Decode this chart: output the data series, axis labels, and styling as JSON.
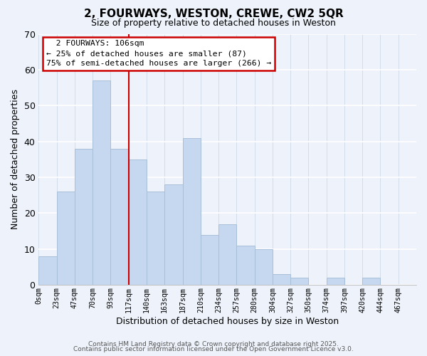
{
  "title": "2, FOURWAYS, WESTON, CREWE, CW2 5QR",
  "subtitle": "Size of property relative to detached houses in Weston",
  "xlabel": "Distribution of detached houses by size in Weston",
  "ylabel": "Number of detached properties",
  "bar_labels": [
    "0sqm",
    "23sqm",
    "47sqm",
    "70sqm",
    "93sqm",
    "117sqm",
    "140sqm",
    "163sqm",
    "187sqm",
    "210sqm",
    "234sqm",
    "257sqm",
    "280sqm",
    "304sqm",
    "327sqm",
    "350sqm",
    "374sqm",
    "397sqm",
    "420sqm",
    "444sqm",
    "467sqm"
  ],
  "bar_values": [
    8,
    26,
    38,
    57,
    38,
    35,
    26,
    28,
    41,
    14,
    17,
    11,
    10,
    3,
    2,
    0,
    2,
    0,
    2,
    0,
    0
  ],
  "bar_color": "#c5d8f0",
  "bar_edge_color": "#a8bfd8",
  "vline_x": 5,
  "vline_color": "#cc0000",
  "ylim": [
    0,
    70
  ],
  "yticks": [
    0,
    10,
    20,
    30,
    40,
    50,
    60,
    70
  ],
  "annotation_title": "2 FOURWAYS: 106sqm",
  "annotation_line1": "← 25% of detached houses are smaller (87)",
  "annotation_line2": "75% of semi-detached houses are larger (266) →",
  "annotation_box_color": "#ffffff",
  "annotation_box_edge": "#cc0000",
  "background_color": "#eef3fb",
  "grid_color": "#d0d8e8",
  "footer_line1": "Contains HM Land Registry data © Crown copyright and database right 2025.",
  "footer_line2": "Contains public sector information licensed under the Open Government Licence v3.0."
}
